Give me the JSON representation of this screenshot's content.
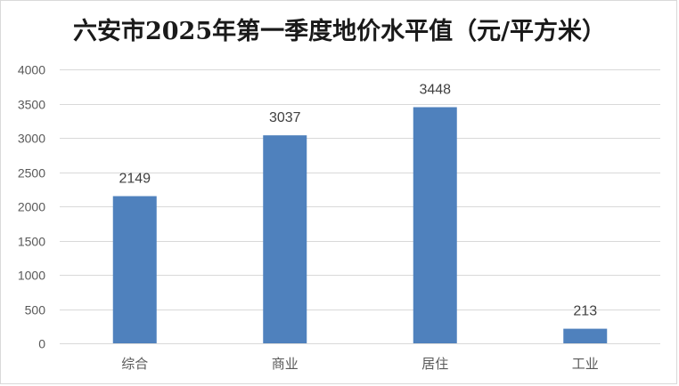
{
  "chart_data": {
    "type": "bar",
    "title": "六安市2025年第一季度地价水平值（元/平方米）",
    "categories": [
      "综合",
      "商业",
      "居住",
      "工业"
    ],
    "values": [
      2149,
      3037,
      3448,
      213
    ],
    "ylim": [
      0,
      4000
    ],
    "yticks": [
      0,
      500,
      1000,
      1500,
      2000,
      2500,
      3000,
      3500,
      4000
    ],
    "xlabel": "",
    "ylabel": "",
    "grid": true,
    "legend": "none",
    "bar_color": "#4f81bd",
    "grid_color": "#d9d9d9",
    "data_labels": true
  }
}
